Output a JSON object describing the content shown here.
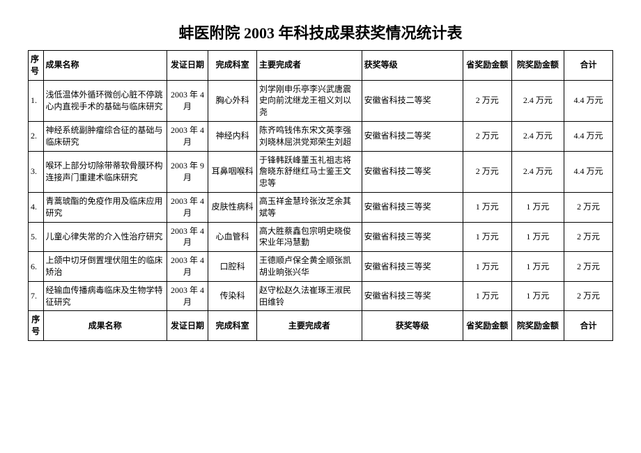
{
  "title": "蚌医附院 2003 年科技成果获奖情况统计表",
  "headers": {
    "num": "序号",
    "name": "成果名称",
    "date": "发证日期",
    "dept": "完成科室",
    "people": "主要完成者",
    "level": "获奖等级",
    "prov": "省奖励金额",
    "hosp": "院奖励金额",
    "total": "合计"
  },
  "rows": [
    {
      "num": "1.",
      "name": "浅低温体外循环微创心脏不停跳心内直视手术的基础与临床研究",
      "date": "2003 年 4 月",
      "dept": "胸心外科",
      "people": "刘学刚申乐亭李兴武唐震史向前沈继龙王祖义刘以尧",
      "level": "安徽省科技二等奖",
      "prov": "2 万元",
      "hosp": "2.4 万元",
      "total": "4.4 万元"
    },
    {
      "num": "2.",
      "name": "神经系统副肿瘤综合征的基础与临床研究",
      "date": "2003 年 4 月",
      "dept": "神经内科",
      "people": "陈齐鸣钱伟东宋文英李强刘晓林屈洪党郑荣生刘超",
      "level": "安徽省科技二等奖",
      "prov": "2 万元",
      "hosp": "2.4 万元",
      "total": "4.4 万元"
    },
    {
      "num": "3.",
      "name": "喉环上部分切除带蒂软骨膜环构连接声门重建术临床研究",
      "date": "2003 年 9 月",
      "dept": "耳鼻咽喉科",
      "people": "于锋韩跃峰董玉礼祖志将詹晓东舒继红马士鉴王文忠等",
      "level": "安徽省科技二等奖",
      "prov": "2 万元",
      "hosp": "2.4 万元",
      "total": "4.4 万元"
    },
    {
      "num": "4.",
      "name": "青蒿琥酯的免疫作用及临床应用研究",
      "date": "2003 年 4 月",
      "dept": "皮肤性病科",
      "people": "高玉祥金慧玲张汝芝余其斌等",
      "level": "安徽省科技三等奖",
      "prov": "1 万元",
      "hosp": "1 万元",
      "total": "2 万元"
    },
    {
      "num": "5.",
      "name": "儿童心律失常的介入性治疗研究",
      "date": "2003 年 4 月",
      "dept": "心血管科",
      "people": "高大胜蔡鑫包宗明史晓俊宋业年冯慧勤",
      "level": "安徽省科技三等奖",
      "prov": "1 万元",
      "hosp": "1 万元",
      "total": "2 万元"
    },
    {
      "num": "6.",
      "name": "上颌中切牙倒置埋伏阻生的临床矫治",
      "date": "2003 年 4 月",
      "dept": "口腔科",
      "people": "王德顺卢保全黄全顺张凯胡业晌张兴华",
      "level": "安徽省科技三等奖",
      "prov": "1 万元",
      "hosp": "1 万元",
      "total": "2 万元"
    },
    {
      "num": "7.",
      "name": "经输血传播病毒临床及生物学特征研究",
      "date": "2003 年 4 月",
      "dept": "传染科",
      "people": "赵守松赵久法崔琢王淑民田维铃",
      "level": "安徽省科技三等奖",
      "prov": "1 万元",
      "hosp": "1 万元",
      "total": "2 万元"
    }
  ]
}
